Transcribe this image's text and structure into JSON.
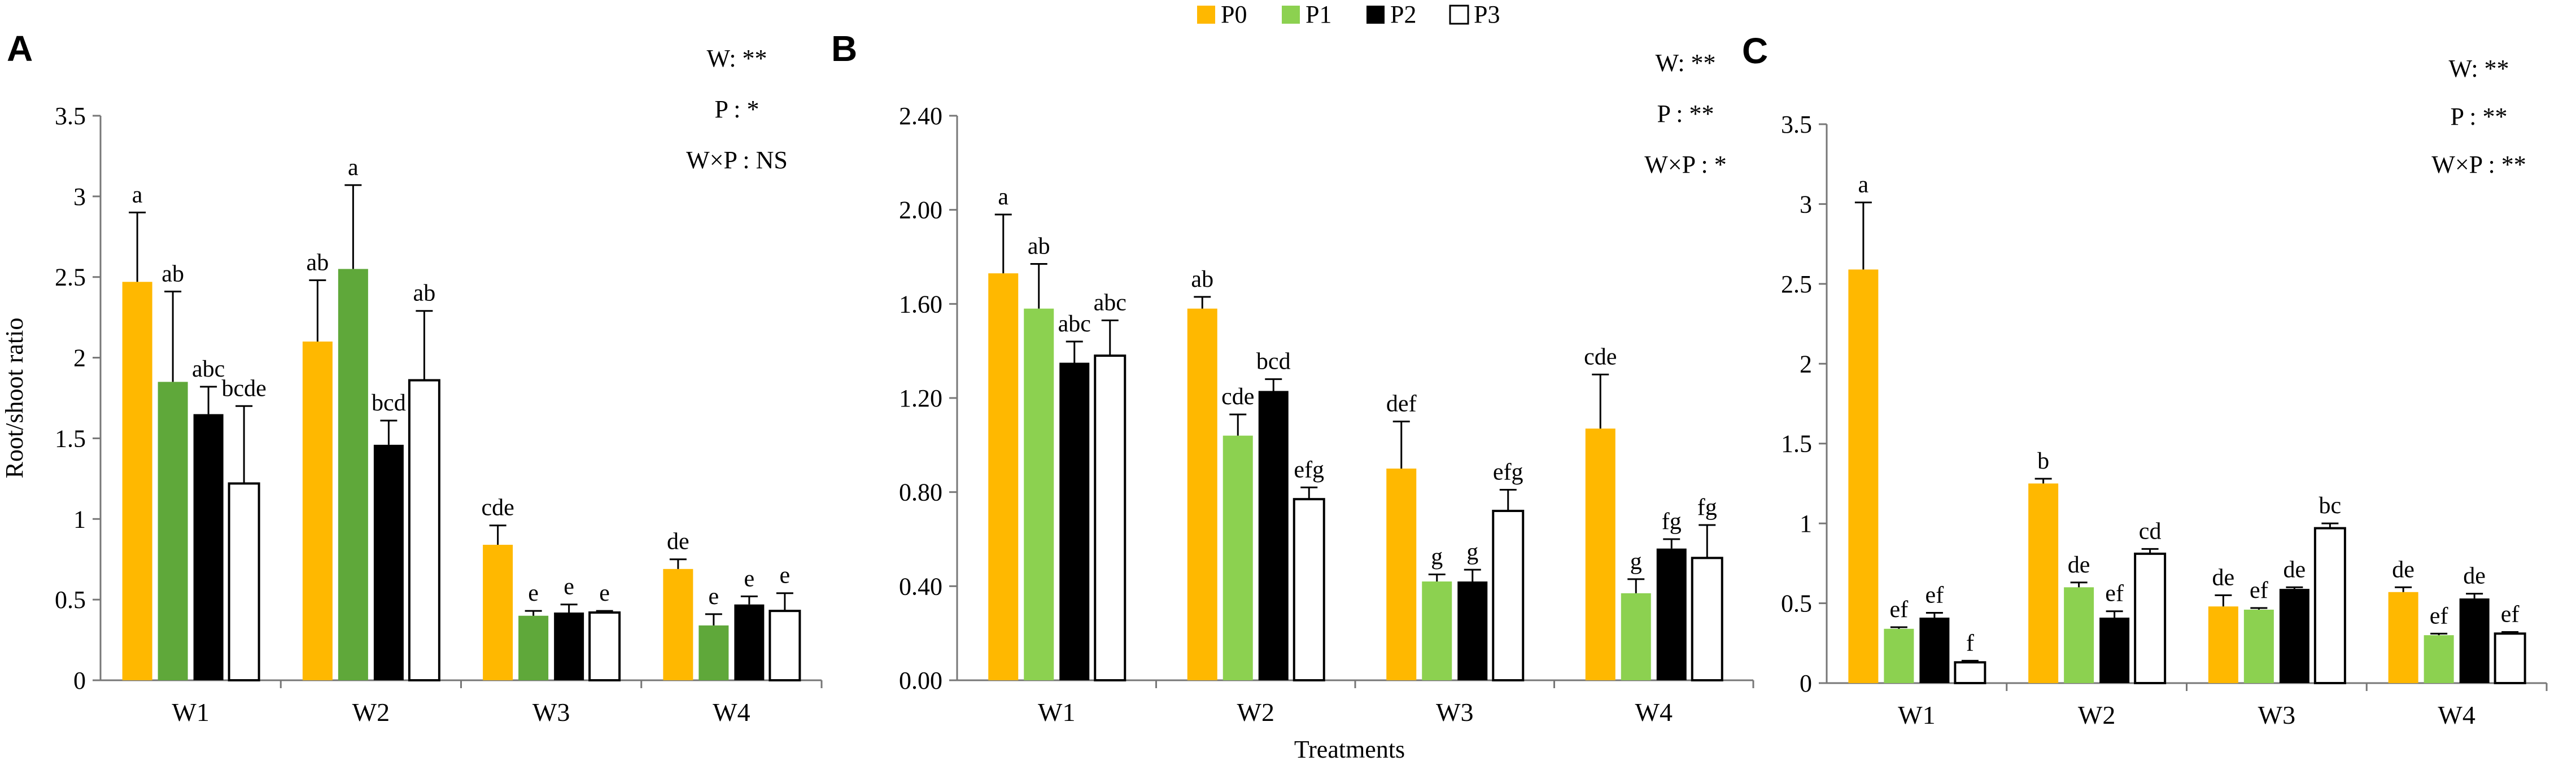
{
  "colors": {
    "P0": "#FFB800",
    "P1": "#8CD150",
    "P2": "#000000",
    "P3": "#FFFFFF"
  },
  "legend": [
    {
      "key": "P0",
      "label": "P0"
    },
    {
      "key": "P1",
      "label": "P1"
    },
    {
      "key": "P2",
      "label": "P2"
    },
    {
      "key": "P3",
      "label": "P3"
    }
  ],
  "xlabel_shared": "Treatments",
  "chart_data": [
    {
      "type": "bar",
      "panel": "A",
      "ylabel": "Root/shoot ratio",
      "ylim": [
        0,
        3.5
      ],
      "yticks": [
        "0",
        "0.5",
        "1",
        "1.5",
        "2",
        "2.5",
        "3",
        "3.5"
      ],
      "categories": [
        "W1",
        "W2",
        "W3",
        "W4"
      ],
      "stats": [
        "W: **",
        "P : *",
        "W×P : NS"
      ],
      "series": [
        {
          "name": "P0",
          "values": [
            2.47,
            2.1,
            0.84,
            0.69
          ],
          "errors": [
            0.43,
            0.38,
            0.12,
            0.06
          ],
          "labels": [
            "a",
            "ab",
            "cde",
            "de"
          ]
        },
        {
          "name": "P1",
          "values": [
            1.85,
            2.55,
            0.4,
            0.34
          ],
          "errors": [
            0.56,
            0.52,
            0.03,
            0.07
          ],
          "labels": [
            "ab",
            "a",
            "e",
            "e"
          ],
          "color": "#5FA83A"
        },
        {
          "name": "P2",
          "values": [
            1.65,
            1.46,
            0.42,
            0.47
          ],
          "errors": [
            0.17,
            0.15,
            0.05,
            0.05
          ],
          "labels": [
            "abc",
            "bcd",
            "e",
            "e"
          ]
        },
        {
          "name": "P3",
          "values": [
            1.22,
            1.86,
            0.42,
            0.43
          ],
          "errors": [
            0.48,
            0.43,
            0.01,
            0.11
          ],
          "labels": [
            "bcde",
            "ab",
            "e",
            "e"
          ]
        }
      ]
    },
    {
      "type": "bar",
      "panel": "B",
      "ylabel": "",
      "ylim": [
        0,
        2.4
      ],
      "yticks": [
        "0.00",
        "0.40",
        "0.80",
        "1.20",
        "1.60",
        "2.00",
        "2.40"
      ],
      "categories": [
        "W1",
        "W2",
        "W3",
        "W4"
      ],
      "stats": [
        "W: **",
        "P : **",
        "W×P : *"
      ],
      "series": [
        {
          "name": "P0",
          "values": [
            1.73,
            1.58,
            0.9,
            1.07
          ],
          "errors": [
            0.25,
            0.05,
            0.2,
            0.23
          ],
          "labels": [
            "a",
            "ab",
            "def",
            "cde"
          ]
        },
        {
          "name": "P1",
          "values": [
            1.58,
            1.04,
            0.42,
            0.37
          ],
          "errors": [
            0.19,
            0.09,
            0.03,
            0.06
          ],
          "labels": [
            "ab",
            "cde",
            "g",
            "g"
          ]
        },
        {
          "name": "P2",
          "values": [
            1.35,
            1.23,
            0.42,
            0.56
          ],
          "errors": [
            0.09,
            0.05,
            0.05,
            0.04
          ],
          "labels": [
            "abc",
            "bcd",
            "g",
            "fg"
          ]
        },
        {
          "name": "P3",
          "values": [
            1.38,
            0.77,
            0.72,
            0.52
          ],
          "errors": [
            0.15,
            0.05,
            0.09,
            0.14
          ],
          "labels": [
            "abc",
            "efg",
            "efg",
            "fg"
          ]
        }
      ]
    },
    {
      "type": "bar",
      "panel": "C",
      "ylabel": "",
      "ylim": [
        0,
        3.5
      ],
      "yticks": [
        "0",
        "0.5",
        "1",
        "1.5",
        "2",
        "2.5",
        "3",
        "3.5"
      ],
      "categories": [
        "W1",
        "W2",
        "W3",
        "W4"
      ],
      "stats": [
        "W: **",
        "P : **",
        "W×P : **"
      ],
      "series": [
        {
          "name": "P0",
          "values": [
            2.59,
            1.25,
            0.48,
            0.57
          ],
          "errors": [
            0.42,
            0.03,
            0.07,
            0.03
          ],
          "labels": [
            "a",
            "b",
            "de",
            "de"
          ]
        },
        {
          "name": "P1",
          "values": [
            0.34,
            0.6,
            0.46,
            0.3
          ],
          "errors": [
            0.01,
            0.03,
            0.01,
            0.01
          ],
          "labels": [
            "ef",
            "de",
            "ef",
            "ef"
          ]
        },
        {
          "name": "P2",
          "values": [
            0.41,
            0.41,
            0.59,
            0.53
          ],
          "errors": [
            0.03,
            0.04,
            0.01,
            0.03
          ],
          "labels": [
            "ef",
            "ef",
            "de",
            "de"
          ]
        },
        {
          "name": "P3",
          "values": [
            0.13,
            0.81,
            0.97,
            0.31
          ],
          "errors": [
            0.01,
            0.03,
            0.03,
            0.01
          ],
          "labels": [
            "f",
            "cd",
            "bc",
            "ef"
          ]
        }
      ]
    }
  ]
}
